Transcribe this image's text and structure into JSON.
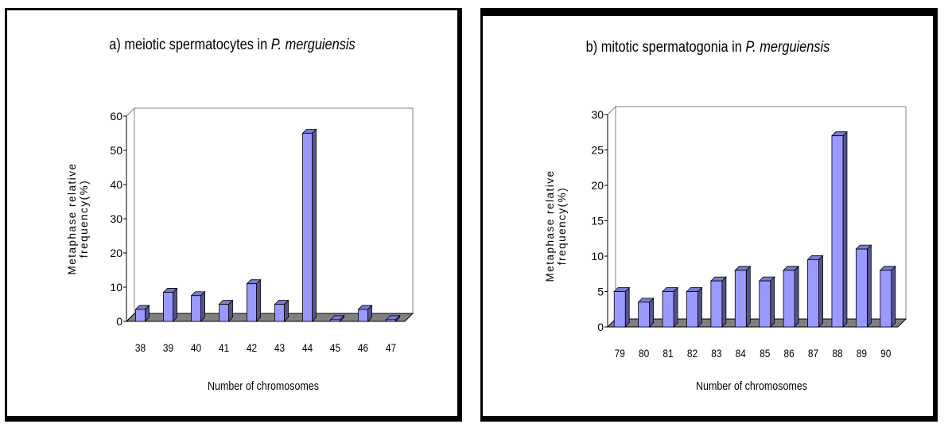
{
  "chart_data": [
    {
      "type": "bar",
      "title_main": "a) meiotic spermatocytes in ",
      "title_species": "P. merguiensis",
      "ylabel_line1": "Metaphase relative",
      "ylabel_line2": "frequency(%)",
      "xlabel": "Number of chromosomes",
      "categories": [
        "38",
        "39",
        "40",
        "41",
        "42",
        "43",
        "44",
        "45",
        "46",
        "47"
      ],
      "values": [
        3.5,
        8.5,
        7.5,
        5,
        11,
        5,
        55,
        0.5,
        3.5,
        0.5
      ],
      "ylim": [
        0,
        60
      ],
      "yticks": [
        "0",
        "10",
        "20",
        "30",
        "40",
        "50",
        "60"
      ],
      "bar_color": "#9999ff",
      "floor_color": "#808080",
      "grid": false,
      "legend": "none"
    },
    {
      "type": "bar",
      "title_main": "b) mitotic spermatogonia in ",
      "title_species": "P. merguiensis",
      "ylabel_line1": "Metaphase relative",
      "ylabel_line2": "frequency(%)",
      "xlabel": "Number of chromosomes",
      "categories": [
        "79",
        "80",
        "81",
        "82",
        "83",
        "84",
        "85",
        "86",
        "87",
        "88",
        "89",
        "90"
      ],
      "values": [
        5,
        3.5,
        5,
        5,
        6.5,
        8,
        6.5,
        8,
        9.5,
        27,
        11,
        8
      ],
      "ylim": [
        0,
        30
      ],
      "yticks": [
        "0",
        "5",
        "10",
        "15",
        "20",
        "25",
        "30"
      ],
      "bar_color": "#9999ff",
      "floor_color": "#808080",
      "grid": false,
      "legend": "none"
    }
  ]
}
